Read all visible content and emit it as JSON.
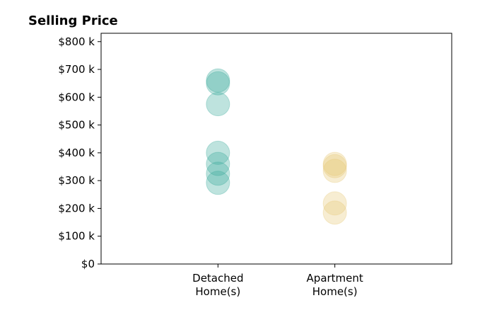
{
  "chart_data": {
    "type": "scatter",
    "title": "Selling Price",
    "xlabel": "",
    "ylabel": "",
    "categories": [
      {
        "line1": "Detached",
        "line2": "Home(s)"
      },
      {
        "line1": "Apartment",
        "line2": "Home(s)"
      }
    ],
    "y_ticks": [
      {
        "value": 0,
        "label": "$0"
      },
      {
        "value": 100000,
        "label": "$100 k"
      },
      {
        "value": 200000,
        "label": "$200 k"
      },
      {
        "value": 300000,
        "label": "$300 k"
      },
      {
        "value": 400000,
        "label": "$400 k"
      },
      {
        "value": 500000,
        "label": "$500 k"
      },
      {
        "value": 600000,
        "label": "$600 k"
      },
      {
        "value": 700000,
        "label": "$700 k"
      },
      {
        "value": 800000,
        "label": "$800 k"
      }
    ],
    "ylim": [
      0,
      830000
    ],
    "xlim": [
      -1,
      2
    ],
    "grid": false,
    "series": [
      {
        "category_index": 0,
        "color": "#3aa99c",
        "values": [
          660000,
          650000,
          575000,
          400000,
          360000,
          325000,
          292000
        ]
      },
      {
        "category_index": 1,
        "color": "#e8c877",
        "values": [
          360000,
          352000,
          335000,
          218000,
          185000
        ]
      }
    ]
  }
}
